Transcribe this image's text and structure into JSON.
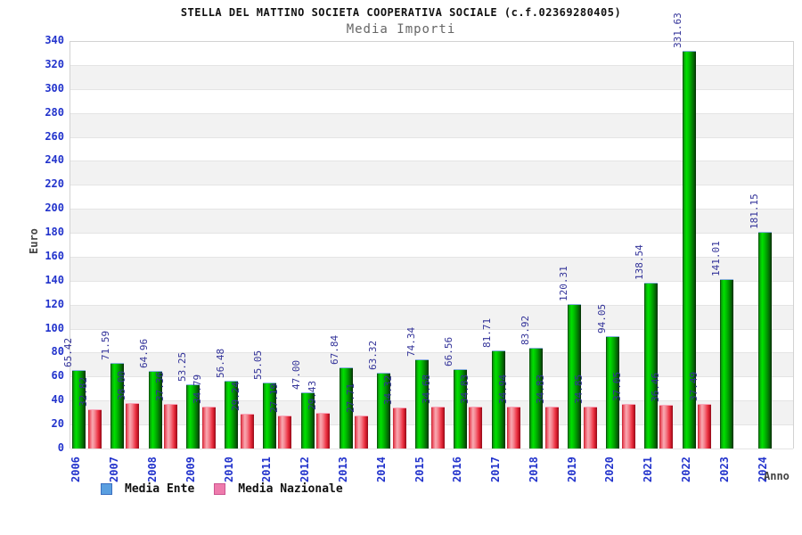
{
  "header": {
    "title": "STELLA DEL MATTINO SOCIETA COOPERATIVA SOCIALE (c.f.02369280405)",
    "subtitle": "Media Importi"
  },
  "axes": {
    "y_label": "Euro",
    "x_label": "Anno"
  },
  "legend": [
    {
      "label": "Media Ente",
      "swatch_fill": "#5a9fe0",
      "swatch_border": "#3a6fc0"
    },
    {
      "label": "Media Nazionale",
      "swatch_fill": "#ee7bac",
      "swatch_border": "#cc5590"
    }
  ],
  "palette": {
    "ente_gradient_colors": [
      "#063b06",
      "#0a9f0a",
      "#00e000",
      "#00c400",
      "#009600",
      "#056005",
      "#042d04"
    ],
    "ente_gradient_stops": [
      0,
      10,
      28,
      45,
      65,
      85,
      100
    ],
    "ente_cap_border": "#8ab0de",
    "nazionale_gradient_colors": [
      "#c2202e",
      "#ee5868",
      "#f8aab2",
      "#f4808c",
      "#ee3848",
      "#c81626",
      "#8e0e1c"
    ],
    "nazionale_gradient_stops": [
      0,
      12,
      32,
      50,
      72,
      88,
      100
    ],
    "nazionale_cap_border": "#f8a8bc",
    "value_label_color": "#333399",
    "tick_label_color": "#2233cc",
    "band_gray": "#f2f2f2",
    "band_white": "#ffffff",
    "axis_text_color": "#444444"
  },
  "chart_data": {
    "type": "bar",
    "title": "STELLA DEL MATTINO SOCIETA COOPERATIVA SOCIALE (c.f.02369280405)",
    "subtitle": "Media Importi",
    "xlabel": "Anno",
    "ylabel": "Euro",
    "ylim": [
      0,
      340
    ],
    "ytick_step": 20,
    "y_ticks": [
      0,
      20,
      40,
      60,
      80,
      100,
      120,
      140,
      160,
      180,
      200,
      220,
      240,
      260,
      280,
      300,
      320,
      340
    ],
    "grid": "horizontal-bands",
    "legend_position": "bottom-left",
    "categories": [
      "2006",
      "2007",
      "2008",
      "2009",
      "2010",
      "2011",
      "2012",
      "2013",
      "2014",
      "2015",
      "2016",
      "2017",
      "2018",
      "2019",
      "2020",
      "2021",
      "2022",
      "2023",
      "2024"
    ],
    "series": [
      {
        "name": "Media Ente",
        "values": [
          65.42,
          71.59,
          64.96,
          53.25,
          56.48,
          55.05,
          47.0,
          67.84,
          63.32,
          74.34,
          66.56,
          81.71,
          83.92,
          120.31,
          94.05,
          138.54,
          331.63,
          141.01,
          181.15
        ]
      },
      {
        "name": "Media Nazionale",
        "values": [
          32.82,
          38.0,
          37.36,
          34.79,
          29.24,
          27.19,
          29.43,
          27.71,
          34.32,
          34.68,
          34.83,
          34.94,
          34.83,
          34.85,
          37.05,
          36.46,
          37.49,
          null,
          null
        ]
      }
    ]
  }
}
